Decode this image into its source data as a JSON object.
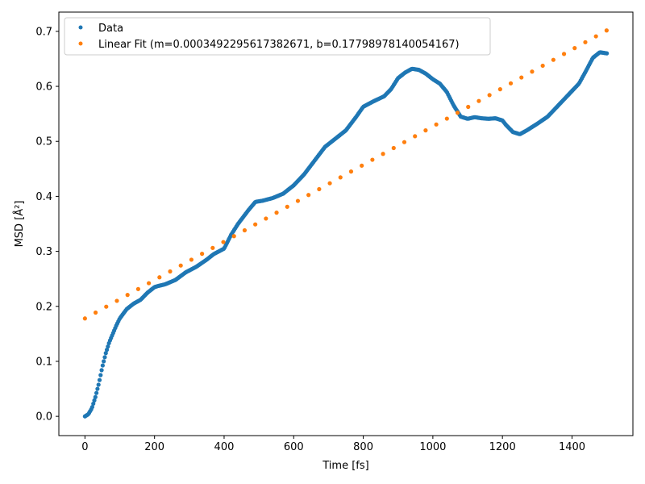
{
  "chart_data": {
    "type": "scatter",
    "xlabel": "Time [fs]",
    "ylabel": "MSD [Å²]",
    "xlim": [
      -75,
      1575
    ],
    "ylim": [
      -0.035,
      0.735
    ],
    "x_ticks": [
      0,
      200,
      400,
      600,
      800,
      1000,
      1200,
      1400
    ],
    "x_tick_labels": [
      "0",
      "200",
      "400",
      "600",
      "800",
      "1000",
      "1200",
      "1400"
    ],
    "y_ticks": [
      0.0,
      0.1,
      0.2,
      0.3,
      0.4,
      0.5,
      0.6,
      0.7
    ],
    "y_tick_labels": [
      "0.0",
      "0.1",
      "0.2",
      "0.3",
      "0.4",
      "0.5",
      "0.6",
      "0.7"
    ],
    "grid": false,
    "legend_position": "top-left",
    "series": [
      {
        "name": "Data",
        "color": "#1f77b4",
        "x_range": [
          0,
          1500
        ],
        "point_count": 501,
        "profile_x": [
          0,
          10,
          20,
          30,
          40,
          50,
          60,
          70,
          80,
          90,
          100,
          120,
          140,
          160,
          180,
          200,
          210,
          230,
          260,
          290,
          320,
          350,
          370,
          400,
          420,
          440,
          470,
          490,
          510,
          540,
          570,
          600,
          630,
          660,
          690,
          720,
          750,
          780,
          800,
          830,
          860,
          880,
          900,
          920,
          940,
          960,
          980,
          1000,
          1020,
          1040,
          1060,
          1080,
          1100,
          1120,
          1140,
          1160,
          1180,
          1200,
          1210,
          1230,
          1250,
          1270,
          1300,
          1330,
          1360,
          1390,
          1420,
          1440,
          1460,
          1480,
          1500
        ],
        "profile_y": [
          0.0,
          0.004,
          0.015,
          0.035,
          0.06,
          0.09,
          0.115,
          0.135,
          0.15,
          0.165,
          0.178,
          0.195,
          0.205,
          0.212,
          0.225,
          0.235,
          0.237,
          0.24,
          0.248,
          0.262,
          0.272,
          0.285,
          0.295,
          0.305,
          0.33,
          0.35,
          0.375,
          0.39,
          0.392,
          0.397,
          0.405,
          0.42,
          0.44,
          0.465,
          0.49,
          0.505,
          0.52,
          0.545,
          0.563,
          0.573,
          0.582,
          0.595,
          0.615,
          0.625,
          0.632,
          0.63,
          0.623,
          0.613,
          0.605,
          0.59,
          0.565,
          0.545,
          0.541,
          0.544,
          0.542,
          0.541,
          0.542,
          0.538,
          0.53,
          0.517,
          0.513,
          0.52,
          0.532,
          0.545,
          0.565,
          0.585,
          0.605,
          0.628,
          0.652,
          0.662,
          0.66
        ]
      },
      {
        "name": "Linear Fit (m=0.0003492295617382671, b=0.17798978140054167)",
        "color": "#ff7f0e",
        "slope": 0.0003492295617382671,
        "intercept": 0.17798978140054167,
        "x_start": 0,
        "x_end": 1500,
        "x_step": 30.6
      }
    ]
  }
}
